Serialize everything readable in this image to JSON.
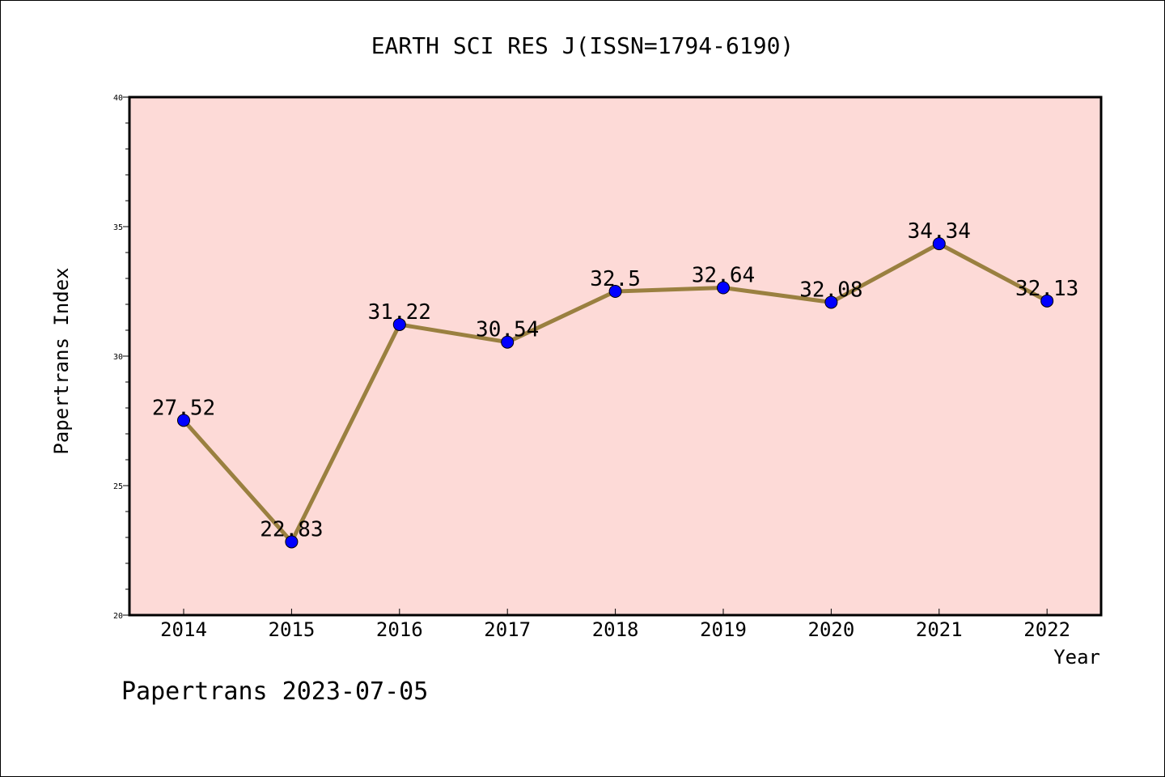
{
  "chart_data": {
    "type": "line",
    "title": "EARTH SCI RES J(ISSN=1794-6190)",
    "xlabel": "Year",
    "ylabel": "Papertrans Index",
    "footer": "Papertrans 2023-07-05",
    "categories": [
      "2014",
      "2015",
      "2016",
      "2017",
      "2018",
      "2019",
      "2020",
      "2021",
      "2022"
    ],
    "values": [
      27.52,
      22.83,
      31.22,
      30.54,
      32.5,
      32.64,
      32.08,
      34.34,
      32.13
    ],
    "data_labels": [
      "27.52",
      "22.83",
      "31.22",
      "30.54",
      "32.5",
      "32.64",
      "32.08",
      "34.34",
      "32.13"
    ],
    "ylim": [
      20,
      40
    ],
    "yticks": [
      "20",
      "25",
      "30",
      "35",
      "40"
    ],
    "grid": false,
    "colors": {
      "plot_background": "#fddad7",
      "line": "#9a8040",
      "marker": "#0000ff",
      "axis": "#000000"
    }
  }
}
